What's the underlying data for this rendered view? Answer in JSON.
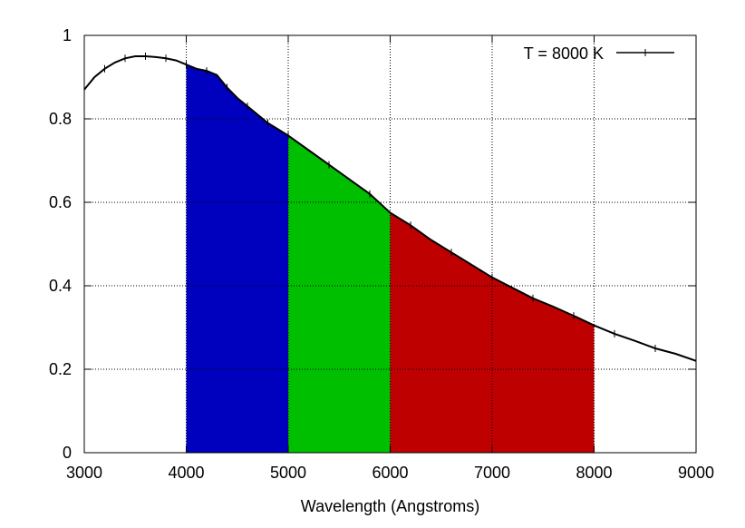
{
  "chart_data": {
    "type": "line",
    "title": "",
    "xlabel": "Wavelength (Angstroms)",
    "ylabel": "",
    "xlim": [
      3000,
      9000
    ],
    "ylim": [
      0,
      1
    ],
    "xticks": [
      3000,
      4000,
      5000,
      6000,
      7000,
      8000,
      9000
    ],
    "xtick_labels": [
      "3000",
      "4000",
      "5000",
      "6000",
      "7000",
      "8000",
      "9000"
    ],
    "yticks": [
      0,
      0.2,
      0.4,
      0.6,
      0.8,
      1
    ],
    "ytick_labels": [
      "0",
      "0.2",
      "0.4",
      "0.6",
      "0.8",
      "1"
    ],
    "grid": true,
    "legend_position": "top-right",
    "series": [
      {
        "name": "T = 8000 K",
        "color": "#000000",
        "marker": "plus",
        "x": [
          3000,
          3100,
          3200,
          3300,
          3400,
          3500,
          3600,
          3700,
          3800,
          3900,
          4000,
          4100,
          4200,
          4300,
          4400,
          4500,
          4600,
          4700,
          4800,
          4900,
          5000,
          5200,
          5400,
          5600,
          5800,
          6000,
          6200,
          6400,
          6600,
          6800,
          7000,
          7200,
          7400,
          7600,
          7800,
          8000,
          8200,
          8400,
          8600,
          8800,
          9000
        ],
        "y": [
          0.87,
          0.9,
          0.92,
          0.935,
          0.945,
          0.95,
          0.95,
          0.948,
          0.945,
          0.94,
          0.93,
          0.92,
          0.915,
          0.905,
          0.875,
          0.85,
          0.83,
          0.81,
          0.79,
          0.775,
          0.76,
          0.725,
          0.69,
          0.655,
          0.62,
          0.575,
          0.545,
          0.51,
          0.48,
          0.45,
          0.42,
          0.395,
          0.37,
          0.35,
          0.328,
          0.305,
          0.285,
          0.268,
          0.25,
          0.237,
          0.22
        ]
      }
    ],
    "bands": [
      {
        "x_start": 4000,
        "x_end": 5000,
        "color": "#0000bf"
      },
      {
        "x_start": 5000,
        "x_end": 6000,
        "color": "#00bf00"
      },
      {
        "x_start": 6000,
        "x_end": 8000,
        "color": "#bf0000"
      }
    ]
  }
}
